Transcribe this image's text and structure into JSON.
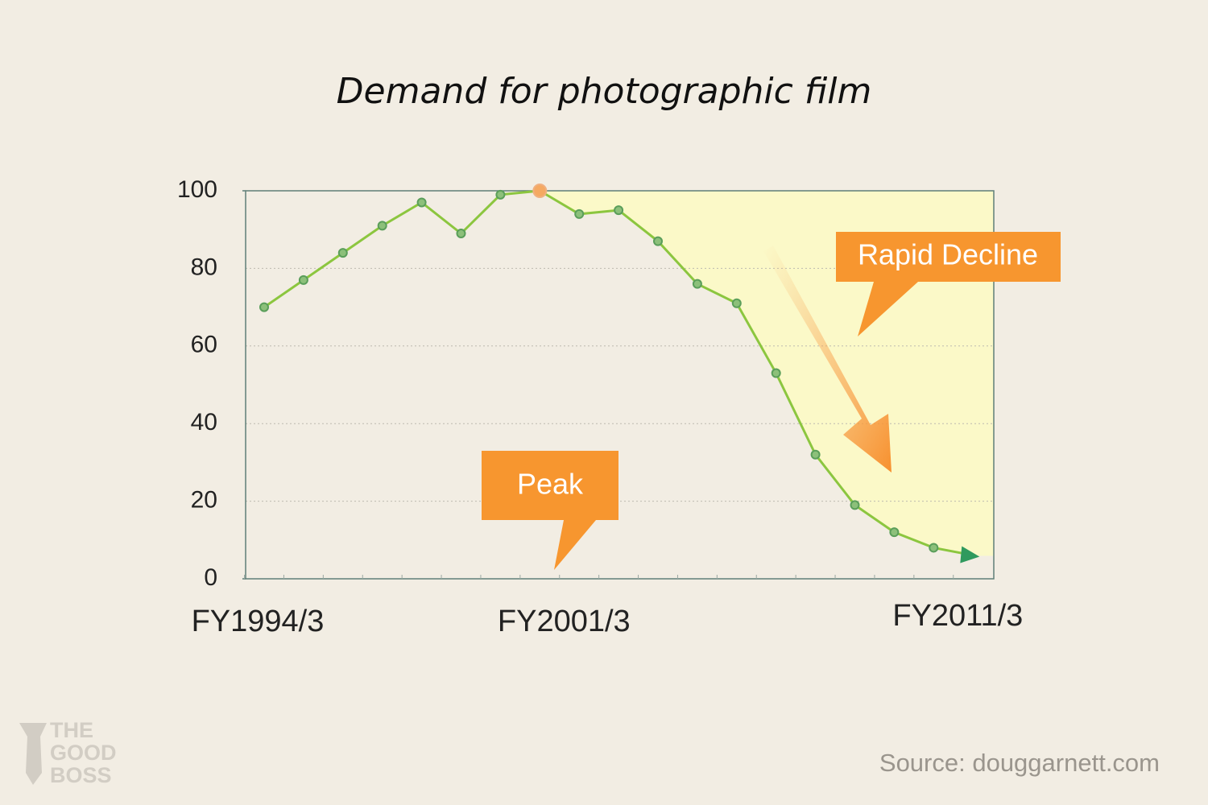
{
  "chart_data": {
    "type": "line",
    "title": "Demand for photographic film",
    "categories": [
      "FY1994/3",
      null,
      null,
      null,
      null,
      null,
      null,
      "FY2001/3",
      null,
      null,
      null,
      null,
      null,
      null,
      null,
      null,
      null,
      "FY2011/3"
    ],
    "series": [
      {
        "color": "#8cc63f",
        "values": [
          70,
          77,
          84,
          91,
          97,
          89,
          99,
          100,
          94,
          95,
          87,
          76,
          71,
          53,
          32,
          19,
          12,
          8
        ]
      }
    ],
    "point_color": "#5a9e5a",
    "peak_color": "#f5a962",
    "fill_color": "#fbf9c8",
    "ylim": [
      0,
      100
    ],
    "yticks": [
      0,
      20,
      40,
      60,
      80,
      100
    ],
    "grid": true,
    "annotations": [
      "Peak",
      "Rapid Decline"
    ],
    "source": "Source: douggarnett.com",
    "logo": [
      "THE",
      "GOOD",
      "BOSS"
    ]
  }
}
